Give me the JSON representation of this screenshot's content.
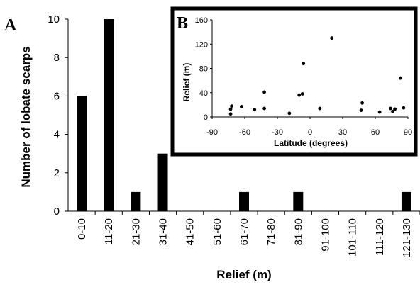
{
  "panel_a_letter": "A",
  "panel_b_letter": "B",
  "chart_data": [
    {
      "panel": "A",
      "type": "bar",
      "xlabel": "Relief (m)",
      "ylabel": "Number of lobate scarps",
      "ylim": [
        0,
        10
      ],
      "yticks": [
        0,
        2,
        4,
        6,
        8,
        10
      ],
      "categories": [
        "0-10",
        "11-20",
        "21-30",
        "31-40",
        "41-50",
        "51-60",
        "61-70",
        "71-80",
        "81-90",
        "91-100",
        "101-110",
        "111-120",
        "121-130"
      ],
      "values": [
        6,
        10,
        1,
        3,
        0,
        0,
        1,
        0,
        1,
        0,
        0,
        0,
        1
      ],
      "bar_color": "#000000",
      "grid": false
    },
    {
      "panel": "B",
      "type": "scatter",
      "xlabel": "Latitude (degrees)",
      "ylabel": "Relief (m)",
      "xlim": [
        -90,
        90
      ],
      "ylim": [
        0,
        160
      ],
      "xticks": [
        -90,
        -60,
        -30,
        0,
        30,
        60,
        90
      ],
      "yticks": [
        0,
        40,
        80,
        120,
        160
      ],
      "points": [
        {
          "x": -73,
          "y": 5
        },
        {
          "x": -73,
          "y": 13
        },
        {
          "x": -72,
          "y": 18
        },
        {
          "x": -63,
          "y": 17
        },
        {
          "x": -51,
          "y": 12
        },
        {
          "x": -42,
          "y": 41
        },
        {
          "x": -42,
          "y": 14
        },
        {
          "x": -19,
          "y": 6
        },
        {
          "x": -10,
          "y": 36
        },
        {
          "x": -7,
          "y": 38
        },
        {
          "x": -6,
          "y": 88
        },
        {
          "x": 9,
          "y": 14
        },
        {
          "x": 20,
          "y": 130
        },
        {
          "x": 47,
          "y": 11
        },
        {
          "x": 48,
          "y": 23
        },
        {
          "x": 64,
          "y": 8
        },
        {
          "x": 74,
          "y": 14
        },
        {
          "x": 76,
          "y": 9
        },
        {
          "x": 78,
          "y": 13
        },
        {
          "x": 83,
          "y": 64
        },
        {
          "x": 86,
          "y": 15
        }
      ],
      "marker_color": "#000000",
      "grid": false
    }
  ]
}
